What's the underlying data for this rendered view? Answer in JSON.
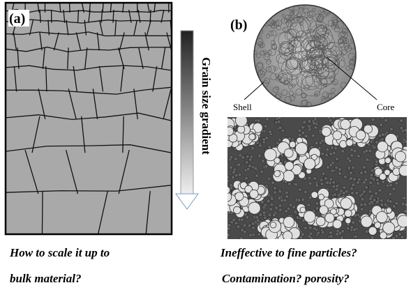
{
  "panel_a": {
    "label": "(a)",
    "arrow_label": "Grain size gradient",
    "caption_lines": [
      "How to scale it up to",
      "bulk material?"
    ]
  },
  "panel_b": {
    "label": "(b)",
    "shell_label": "Shell",
    "core_label": "Core",
    "caption_lines": [
      "Ineffective to fine particles?",
      "Contamination? porosity?"
    ]
  }
}
